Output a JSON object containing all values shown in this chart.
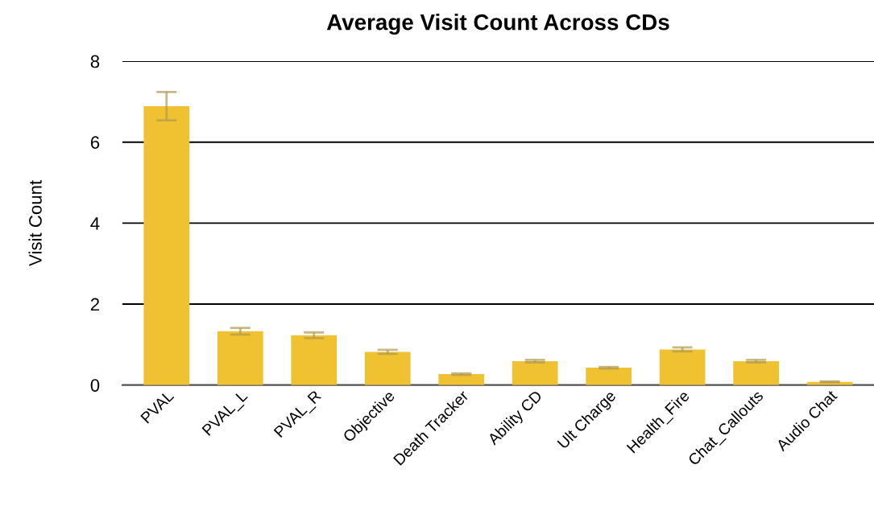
{
  "chart_data": {
    "type": "bar",
    "title": "Average Visit Count Across CDs",
    "ylabel": "Visit Count",
    "categories": [
      "PVAL",
      "PVAL_L",
      "PVAL_R",
      "Objective",
      "Death Tracker",
      "Ability CD",
      "Ult Charge",
      "Health_Fire",
      "Chat_Callouts",
      "Audio Chat"
    ],
    "values": [
      6.89,
      1.33,
      1.23,
      0.82,
      0.27,
      0.59,
      0.43,
      0.88,
      0.59,
      0.08
    ],
    "errors": [
      0.35,
      0.08,
      0.07,
      0.05,
      0.02,
      0.03,
      0.02,
      0.05,
      0.03,
      0.01
    ],
    "color": "#f0c232",
    "ylim": [
      0,
      8
    ],
    "yticks": [
      0,
      2,
      4,
      6,
      8
    ],
    "grid": "y",
    "legend": false
  }
}
